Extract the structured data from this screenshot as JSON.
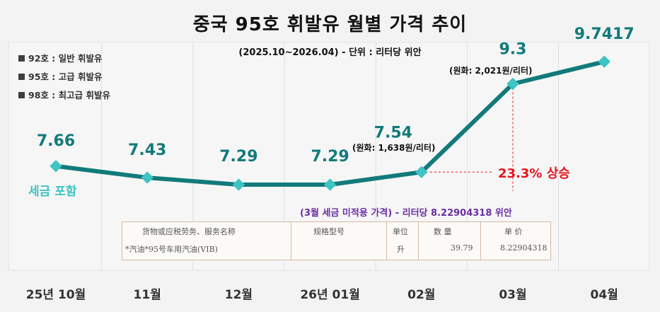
{
  "title": "중국 95호 휘발유 월별 가격 추이",
  "subtitle": "(2025.10~2026.04) - 단위 : 리터당 위안",
  "legend": [
    {
      "label": "92호 : 일반 휘발유"
    },
    {
      "label": "95호 : 고급 휘발유"
    },
    {
      "label": "98호 : 최고급 휘발유"
    }
  ],
  "annotations": {
    "tax_included": "세금 포함",
    "krw_feb": "(원화: 1,638원/리터)",
    "krw_mar": "(원화: 2,021원/리터)",
    "rise": "23.3% 상승",
    "march_untaxed": "(3월 세금 미적용 가격) - 리터당 8.22904318 위안"
  },
  "invoice": {
    "headers": [
      "货物或应税劳务、服务名称",
      "规格型号",
      "单位",
      "数 量",
      "单 价"
    ],
    "row": [
      "*汽油*95号车用汽油(VIB)",
      "",
      "升",
      "39.79",
      "8.22904318"
    ]
  },
  "colors": {
    "line": "#127a7a",
    "marker": "#3fc4c4",
    "value": "#127a7a",
    "rise": "#e8141c",
    "note": "#6b2fa3"
  },
  "chart_data": {
    "type": "line",
    "title": "중국 95호 휘발유 월별 가격 추이",
    "categories": [
      "25년 10월",
      "11월",
      "12월",
      "26년 01월",
      "02월",
      "03월",
      "04월"
    ],
    "values": [
      7.66,
      7.43,
      7.29,
      7.29,
      7.54,
      9.3,
      9.7417
    ],
    "value_labels": [
      "7.66",
      "7.43",
      "7.29",
      "7.29",
      "7.54",
      "9.3",
      "9.7417"
    ],
    "xlabel": "",
    "ylabel": "",
    "grid": "vertical lines only",
    "legend": "top-left"
  }
}
